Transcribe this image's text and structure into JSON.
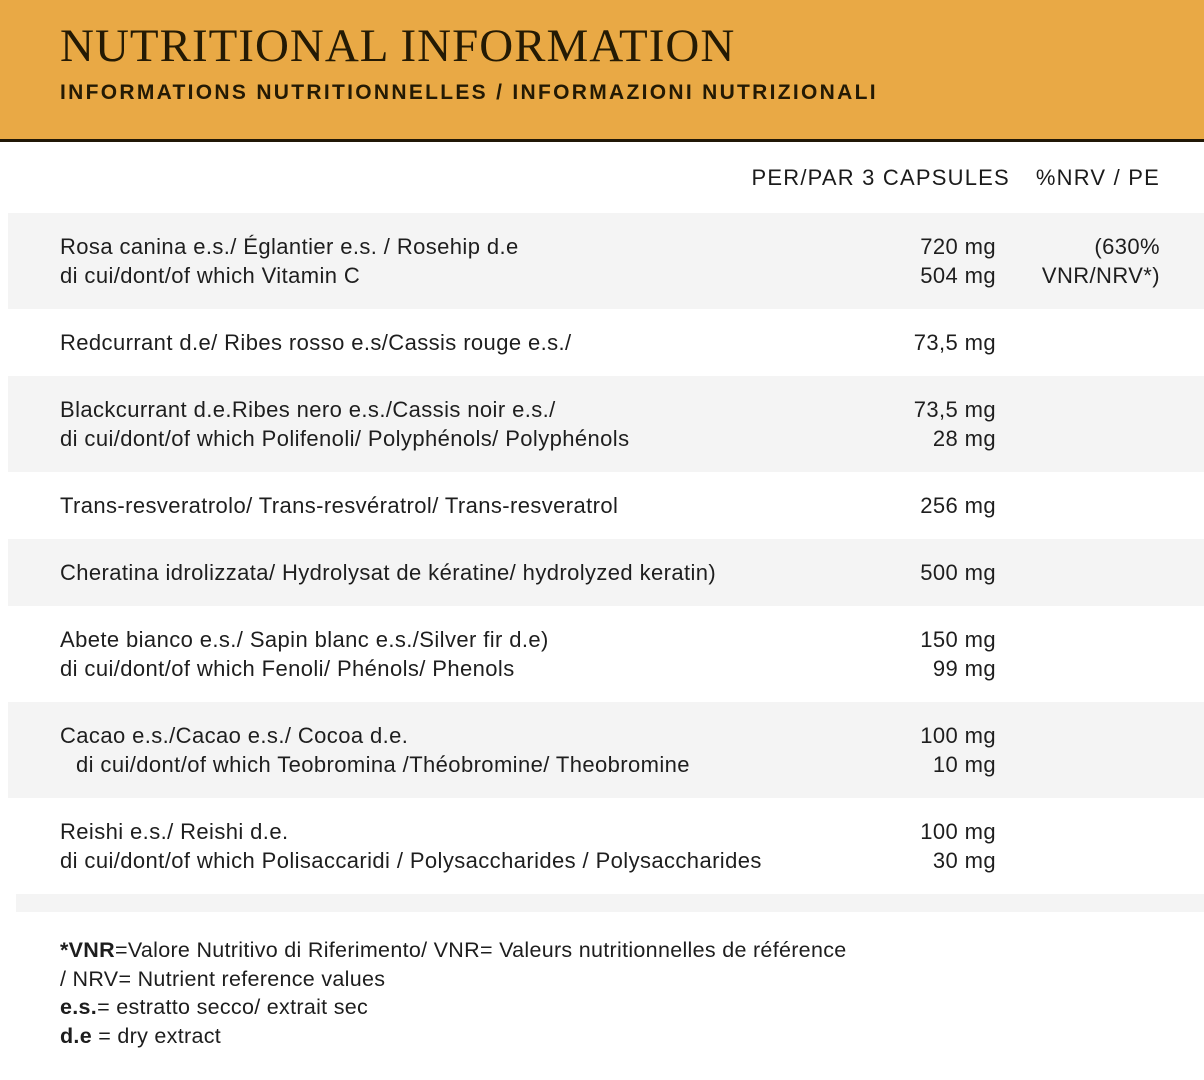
{
  "banner": {
    "title": "NUTRITIONAL INFORMATION",
    "subtitle": "INFORMATIONS NUTRITIONNELLES / INFORMAZIONI NUTRIZIONALI"
  },
  "colors": {
    "banner_bg": "#E9A945",
    "banner_text": "#241A04",
    "banner_underline": "#211807",
    "row_stripe": "#F4F4F4",
    "body_text": "#1E1E1E"
  },
  "table": {
    "col_headers": {
      "amount": "PER/PAR 3 CAPSULES",
      "nrv": "%NRV / PE"
    },
    "rows": [
      {
        "lines": [
          {
            "label": "Rosa canina e.s./ Églantier e.s. / Rosehip d.e",
            "amount": "720 mg",
            "nrv": "(630%"
          },
          {
            "label": "di cui/dont/of which Vitamin C",
            "amount": "504 mg",
            "nrv": "VNR/NRV*)"
          }
        ]
      },
      {
        "lines": [
          {
            "label": "Redcurrant d.e/ Ribes rosso e.s/Cassis rouge e.s./",
            "amount": "73,5 mg",
            "nrv": ""
          }
        ]
      },
      {
        "lines": [
          {
            "label": "Blackcurrant d.e.Ribes nero e.s./Cassis noir e.s./",
            "amount": "73,5 mg",
            "nrv": ""
          },
          {
            "label": "di cui/dont/of which Polifenoli/ Polyphénols/ Polyphénols",
            "amount": "28 mg",
            "nrv": ""
          }
        ]
      },
      {
        "lines": [
          {
            "label": "Trans-resveratrolo/ Trans-resvératrol/ Trans-resveratrol",
            "amount": "256 mg",
            "nrv": ""
          }
        ]
      },
      {
        "lines": [
          {
            "label": "Cheratina idrolizzata/ Hydrolysat de kératine/ hydrolyzed keratin)",
            "amount": "500 mg",
            "nrv": ""
          }
        ]
      },
      {
        "lines": [
          {
            "label": "Abete bianco e.s./ Sapin blanc e.s./Silver fir d.e)",
            "amount": "150 mg",
            "nrv": ""
          },
          {
            "label": "di cui/dont/of which Fenoli/ Phénols/ Phenols",
            "amount": "99 mg",
            "nrv": ""
          }
        ]
      },
      {
        "lines": [
          {
            "label": "Cacao e.s./Cacao e.s./ Cocoa d.e.",
            "amount": "100 mg",
            "nrv": ""
          },
          {
            "label": "di cui/dont/of which Teobromina /Théobromine/ Theobromine",
            "amount": "10 mg",
            "nrv": ""
          }
        ]
      },
      {
        "lines": [
          {
            "label": "Reishi e.s./ Reishi d.e.",
            "amount": "100 mg",
            "nrv": ""
          },
          {
            "label": "di cui/dont/of which Polisaccaridi / Polysaccharides / Polysaccharides",
            "amount": "30 mg",
            "nrv": ""
          }
        ]
      }
    ]
  },
  "footnotes": [
    {
      "bold": "*VNR",
      "rest": "=Valore Nutritivo di Riferimento/ VNR= Valeurs nutritionnelles de référence"
    },
    {
      "bold": "",
      "rest": "/ NRV= Nutrient reference values"
    },
    {
      "bold": "e.s.",
      "rest": "= estratto secco/ extrait sec"
    },
    {
      "bold": "d.e",
      "rest": " = dry extract"
    }
  ]
}
